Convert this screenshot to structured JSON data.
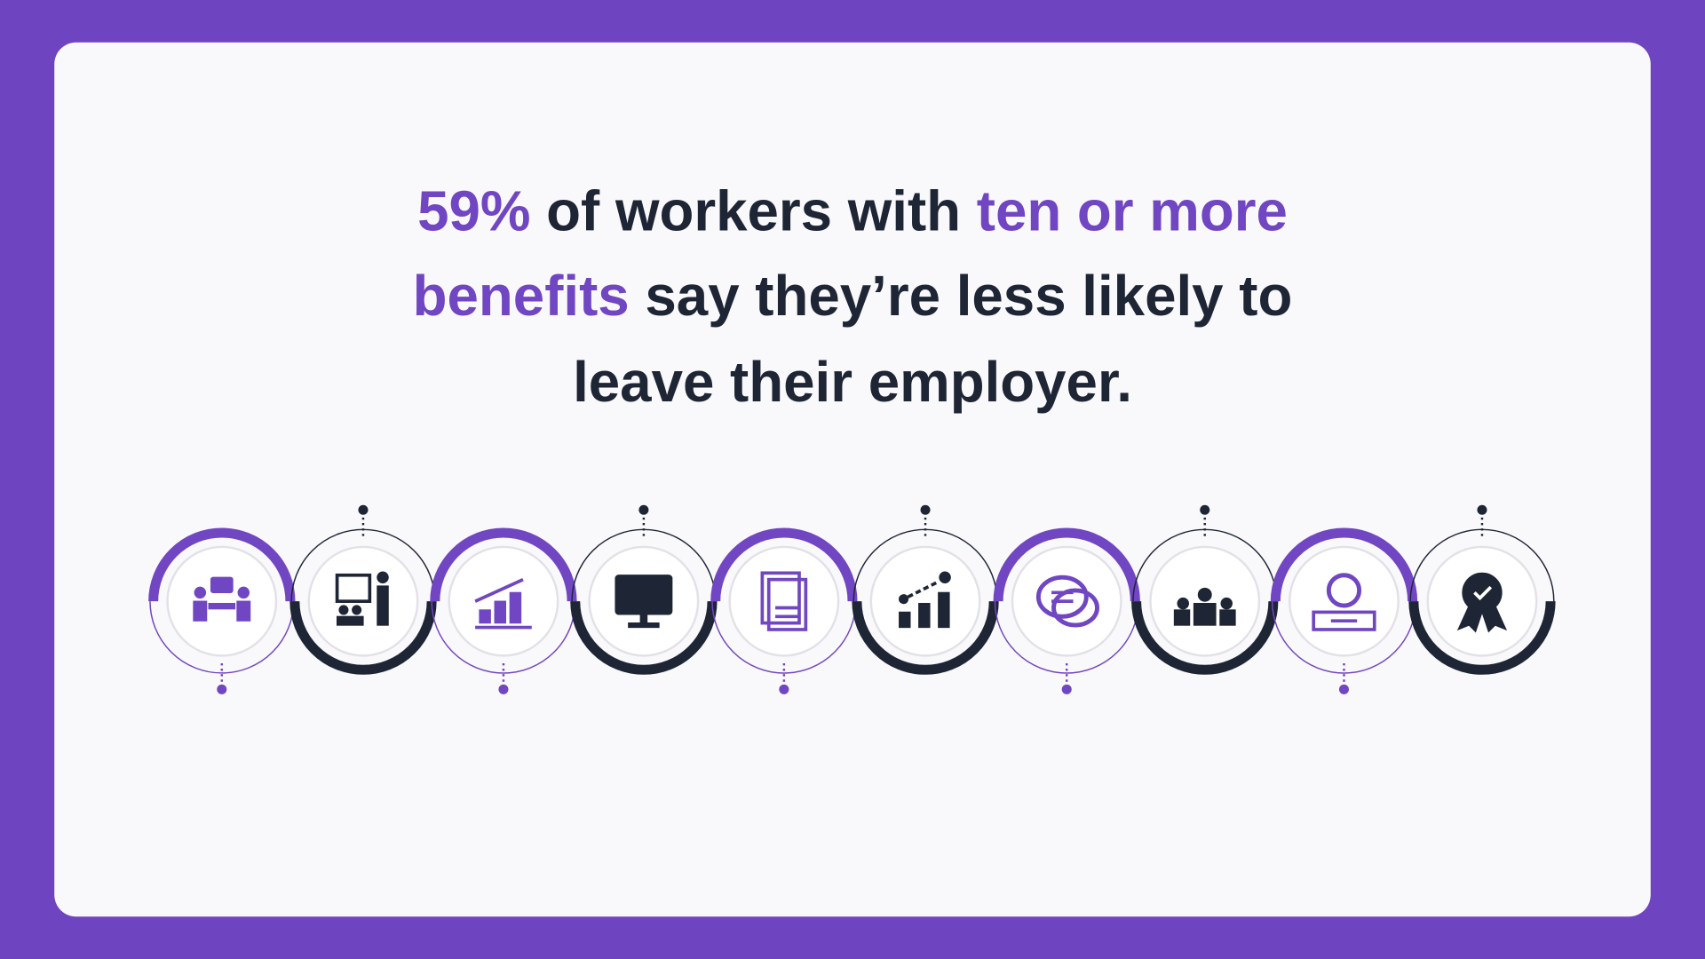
{
  "headline": {
    "lines": [
      [
        "59%",
        "of workers with",
        "ten or more"
      ],
      [
        "benefits",
        "say they’re less likely to"
      ],
      [
        "leave their employer."
      ]
    ]
  }
}
